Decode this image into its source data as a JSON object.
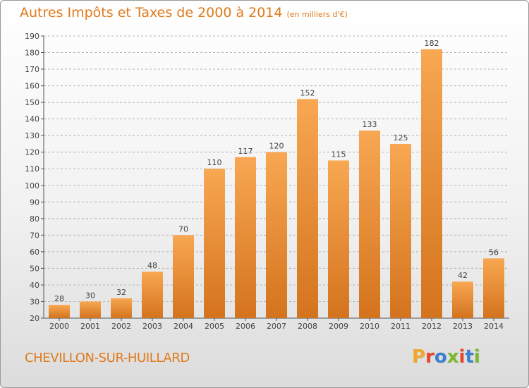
{
  "header": {
    "title": "Autres Impôts et Taxes de 2000 à 2014",
    "unit": "(en milliers d'€)"
  },
  "footer": {
    "commune": "CHEVILLON-SUR-HUILLARD",
    "brand": "Proxiti",
    "brand_colors": [
      "#f2a52a",
      "#e8432b",
      "#3b7fd1",
      "#79b72b",
      "#e8432b",
      "#3b7fd1",
      "#79b72b"
    ]
  },
  "colors": {
    "accent": "#e07a1a",
    "bar_light": "#f8a752",
    "bar_dark": "#d4731d",
    "grid": "#b4b4b4",
    "text": "#444444"
  },
  "chart_data": {
    "type": "bar",
    "title": "Autres Impôts et Taxes de 2000 à 2014",
    "subtitle": "(en milliers d'€)",
    "xlabel": "",
    "ylabel": "",
    "categories": [
      "2000",
      "2001",
      "2002",
      "2003",
      "2004",
      "2005",
      "2006",
      "2007",
      "2008",
      "2009",
      "2010",
      "2011",
      "2012",
      "2013",
      "2014"
    ],
    "values": [
      28,
      30,
      32,
      48,
      70,
      110,
      117,
      120,
      152,
      115,
      133,
      125,
      182,
      42,
      56
    ],
    "ylim": [
      20,
      190
    ],
    "yticks": [
      20,
      30,
      40,
      50,
      60,
      70,
      80,
      90,
      100,
      110,
      120,
      130,
      140,
      150,
      160,
      170,
      180,
      190
    ],
    "grid": true,
    "data_labels": true
  }
}
